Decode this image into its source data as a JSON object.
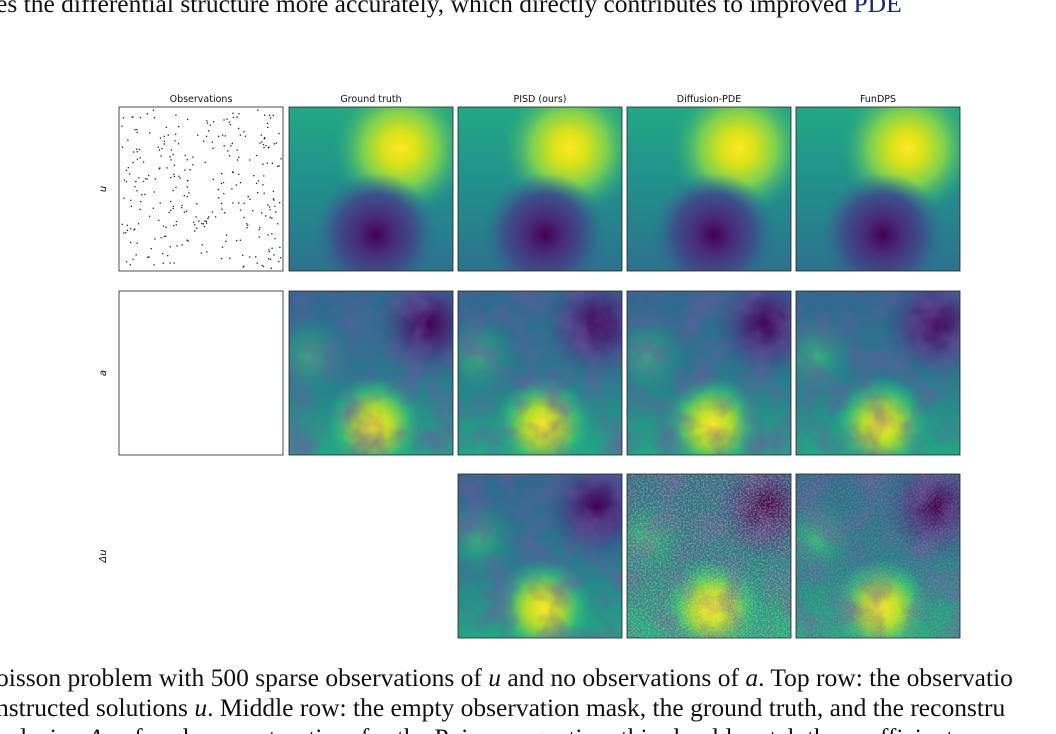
{
  "body_text": {
    "line": "es the differential structure more accurately, which directly contributes to improved ",
    "link": "PDE"
  },
  "figure": {
    "columns": [
      "Observations",
      "Ground truth",
      "PISD (ours)",
      "Diffusion-PDE",
      "FunDPS"
    ],
    "rows": [
      "u",
      "a",
      "Δu"
    ]
  },
  "caption": {
    "lines": [
      [
        "oisson problem with 500 sparse observations of ",
        "u",
        " and no observations of ",
        "a",
        ". Top row: the observatio"
      ],
      [
        "nstructed solutions ",
        "u",
        ". Middle row: the empty observation mask, the ground truth, and the reconstru"
      ],
      [
        "aplacian ",
        "Δu",
        " of each reconstruction, for the Poisson equation, this should match the coefficient "
      ]
    ]
  }
}
